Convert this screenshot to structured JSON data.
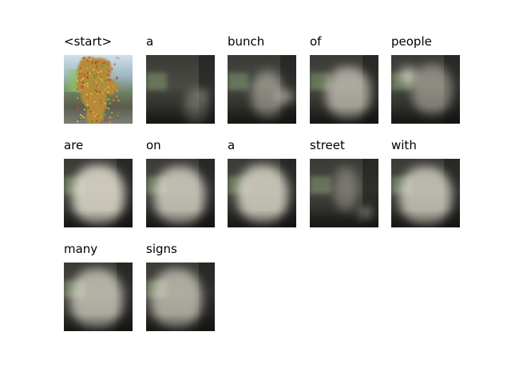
{
  "words": [
    "<start>",
    "a",
    "bunch",
    "of",
    "people",
    "are",
    "on",
    "a",
    "street",
    "with",
    "many",
    "signs"
  ],
  "attention_maps": [
    {
      "type": "original"
    },
    {
      "type": "attention",
      "focus": "center-right spot",
      "brightness": 0.35
    },
    {
      "type": "attention",
      "focus": "right-center",
      "brightness": 0.55
    },
    {
      "type": "attention",
      "focus": "diffuse center",
      "brightness": 0.7
    },
    {
      "type": "attention",
      "focus": "left-upper spot",
      "brightness": 0.6
    },
    {
      "type": "attention",
      "focus": "broad center",
      "brightness": 0.85
    },
    {
      "type": "attention",
      "focus": "broad center",
      "brightness": 0.8
    },
    {
      "type": "attention",
      "focus": "broad center",
      "brightness": 0.82
    },
    {
      "type": "attention",
      "focus": "lower-right spot",
      "brightness": 0.4
    },
    {
      "type": "attention",
      "focus": "broad center",
      "brightness": 0.78
    },
    {
      "type": "attention",
      "focus": "broad center",
      "brightness": 0.75
    },
    {
      "type": "attention",
      "focus": "broad center-left",
      "brightness": 0.72
    }
  ]
}
